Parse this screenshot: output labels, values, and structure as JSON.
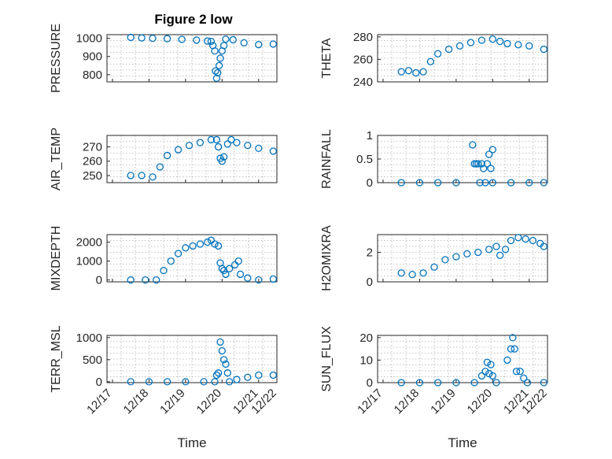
{
  "figure": {
    "title": "Figure 2 low"
  },
  "colors": {
    "marker": "#0072BD",
    "axis": "#262626",
    "grid": "#b0b0b0"
  },
  "chart_data": [
    {
      "id": "pressure",
      "type": "scatter",
      "ylabel": "PRESSURE",
      "xlabel": "",
      "ylim": [
        760,
        1020
      ],
      "yticks": [
        800,
        900,
        1000
      ],
      "grid": true,
      "xlim": [
        0.35,
        5.0
      ],
      "points": [
        [
          1.0,
          1005
        ],
        [
          1.3,
          1002
        ],
        [
          1.6,
          1000
        ],
        [
          2.0,
          998
        ],
        [
          2.4,
          994
        ],
        [
          2.8,
          990
        ],
        [
          3.1,
          985
        ],
        [
          3.2,
          983
        ],
        [
          3.25,
          960
        ],
        [
          3.3,
          930
        ],
        [
          3.32,
          820
        ],
        [
          3.35,
          780
        ],
        [
          3.38,
          810
        ],
        [
          3.42,
          850
        ],
        [
          3.45,
          890
        ],
        [
          3.5,
          930
        ],
        [
          3.55,
          960
        ],
        [
          3.6,
          995
        ],
        [
          3.8,
          992
        ],
        [
          4.1,
          975
        ],
        [
          4.5,
          965
        ],
        [
          4.9,
          968
        ]
      ]
    },
    {
      "id": "theta",
      "type": "scatter",
      "ylabel": "THETA",
      "xlabel": "",
      "ylim": [
        240,
        282
      ],
      "yticks": [
        240,
        260,
        280
      ],
      "grid": true,
      "xlim": [
        0.35,
        5.0
      ],
      "points": [
        [
          1.0,
          249
        ],
        [
          1.2,
          250
        ],
        [
          1.4,
          248
        ],
        [
          1.6,
          249
        ],
        [
          1.8,
          258
        ],
        [
          2.0,
          265
        ],
        [
          2.3,
          269
        ],
        [
          2.6,
          272
        ],
        [
          2.9,
          275
        ],
        [
          3.2,
          277
        ],
        [
          3.5,
          278
        ],
        [
          3.7,
          276
        ],
        [
          3.9,
          274
        ],
        [
          4.2,
          273
        ],
        [
          4.5,
          272
        ],
        [
          4.9,
          269
        ]
      ]
    },
    {
      "id": "airtemp",
      "type": "scatter",
      "ylabel": "AIR_TEMP",
      "xlabel": "",
      "ylim": [
        245,
        278
      ],
      "yticks": [
        250,
        260,
        270
      ],
      "grid": true,
      "xlim": [
        0.35,
        5.0
      ],
      "points": [
        [
          1.0,
          250
        ],
        [
          1.3,
          250
        ],
        [
          1.6,
          249
        ],
        [
          1.8,
          256
        ],
        [
          2.0,
          264
        ],
        [
          2.3,
          268
        ],
        [
          2.6,
          271
        ],
        [
          2.9,
          273
        ],
        [
          3.2,
          275
        ],
        [
          3.35,
          275
        ],
        [
          3.4,
          270
        ],
        [
          3.45,
          262
        ],
        [
          3.5,
          260
        ],
        [
          3.55,
          263
        ],
        [
          3.65,
          272
        ],
        [
          3.75,
          275
        ],
        [
          3.9,
          273
        ],
        [
          4.2,
          271
        ],
        [
          4.5,
          269
        ],
        [
          4.9,
          267
        ]
      ]
    },
    {
      "id": "rainfall",
      "type": "scatter",
      "ylabel": "RAINFALL",
      "xlabel": "",
      "ylim": [
        0,
        1
      ],
      "yticks": [
        0,
        0.5,
        1
      ],
      "grid": true,
      "xlim": [
        0.35,
        5.0
      ],
      "points": [
        [
          1.0,
          0
        ],
        [
          1.5,
          0
        ],
        [
          2.0,
          0
        ],
        [
          2.5,
          0
        ],
        [
          2.95,
          0.8
        ],
        [
          3.0,
          0.4
        ],
        [
          3.05,
          0.4
        ],
        [
          3.1,
          0.4
        ],
        [
          3.15,
          0
        ],
        [
          3.2,
          0.4
        ],
        [
          3.25,
          0.3
        ],
        [
          3.3,
          0
        ],
        [
          3.35,
          0.4
        ],
        [
          3.4,
          0.6
        ],
        [
          3.45,
          0.3
        ],
        [
          3.5,
          0.7
        ],
        [
          3.5,
          0
        ],
        [
          4.0,
          0
        ],
        [
          4.5,
          0
        ],
        [
          4.9,
          0
        ]
      ]
    },
    {
      "id": "mixdepth",
      "type": "scatter",
      "ylabel": "MIXDEPTH",
      "xlabel": "",
      "ylim": [
        -100,
        2400
      ],
      "yticks": [
        0,
        1000,
        2000
      ],
      "grid": true,
      "xlim": [
        0.35,
        5.0
      ],
      "points": [
        [
          1.0,
          0
        ],
        [
          1.4,
          0
        ],
        [
          1.7,
          0
        ],
        [
          1.9,
          500
        ],
        [
          2.1,
          1000
        ],
        [
          2.3,
          1400
        ],
        [
          2.5,
          1700
        ],
        [
          2.7,
          1800
        ],
        [
          2.9,
          1900
        ],
        [
          3.1,
          2000
        ],
        [
          3.2,
          2100
        ],
        [
          3.3,
          1900
        ],
        [
          3.4,
          1800
        ],
        [
          3.45,
          900
        ],
        [
          3.5,
          600
        ],
        [
          3.55,
          500
        ],
        [
          3.6,
          300
        ],
        [
          3.7,
          600
        ],
        [
          3.85,
          800
        ],
        [
          3.95,
          1000
        ],
        [
          4.0,
          300
        ],
        [
          4.2,
          100
        ],
        [
          4.5,
          0
        ],
        [
          4.9,
          50
        ]
      ]
    },
    {
      "id": "h2omixra",
      "type": "scatter",
      "ylabel": "H2OMIXRA",
      "xlabel": "",
      "ylim": [
        0,
        3.2
      ],
      "yticks": [
        0,
        2
      ],
      "grid": true,
      "xlim": [
        0.35,
        5.0
      ],
      "points": [
        [
          1.0,
          0.6
        ],
        [
          1.3,
          0.5
        ],
        [
          1.6,
          0.6
        ],
        [
          1.9,
          1.0
        ],
        [
          2.2,
          1.5
        ],
        [
          2.5,
          1.7
        ],
        [
          2.8,
          1.9
        ],
        [
          3.1,
          2.0
        ],
        [
          3.4,
          2.2
        ],
        [
          3.6,
          2.4
        ],
        [
          3.7,
          1.8
        ],
        [
          3.85,
          2.2
        ],
        [
          4.0,
          2.8
        ],
        [
          4.2,
          3.0
        ],
        [
          4.4,
          2.9
        ],
        [
          4.6,
          2.8
        ],
        [
          4.8,
          2.6
        ],
        [
          4.9,
          2.4
        ]
      ]
    },
    {
      "id": "terrmsl",
      "type": "scatter",
      "ylabel": "TERR_MSL",
      "xlabel": "Time",
      "ylim": [
        -20,
        1050
      ],
      "yticks": [
        0,
        500,
        1000
      ],
      "grid": true,
      "xlim": [
        0.35,
        5.0
      ],
      "xticks": [
        "12/17",
        "12/18",
        "12/19",
        "12/20",
        "12/21",
        "12/22"
      ],
      "points": [
        [
          1.0,
          0
        ],
        [
          1.5,
          0
        ],
        [
          2.0,
          0
        ],
        [
          2.5,
          0
        ],
        [
          3.0,
          0
        ],
        [
          3.3,
          0
        ],
        [
          3.35,
          150
        ],
        [
          3.4,
          200
        ],
        [
          3.45,
          900
        ],
        [
          3.5,
          700
        ],
        [
          3.55,
          500
        ],
        [
          3.6,
          400
        ],
        [
          3.65,
          200
        ],
        [
          3.7,
          0
        ],
        [
          3.9,
          50
        ],
        [
          4.2,
          100
        ],
        [
          4.5,
          150
        ],
        [
          4.9,
          150
        ]
      ]
    },
    {
      "id": "sunflux",
      "type": "scatter",
      "ylabel": "SUN_FLUX",
      "xlabel": "Time",
      "ylim": [
        0,
        21
      ],
      "yticks": [
        0,
        10,
        20
      ],
      "grid": true,
      "xlim": [
        0.35,
        5.0
      ],
      "xticks": [
        "12/17",
        "12/18",
        "12/19",
        "12/20",
        "12/21",
        "12/22"
      ],
      "points": [
        [
          1.0,
          0
        ],
        [
          1.5,
          0
        ],
        [
          2.0,
          0
        ],
        [
          2.5,
          0
        ],
        [
          3.0,
          0
        ],
        [
          3.2,
          3
        ],
        [
          3.3,
          5
        ],
        [
          3.35,
          9
        ],
        [
          3.4,
          4
        ],
        [
          3.45,
          8
        ],
        [
          3.5,
          3
        ],
        [
          3.6,
          0
        ],
        [
          3.9,
          10
        ],
        [
          4.0,
          15
        ],
        [
          4.05,
          20
        ],
        [
          4.1,
          15
        ],
        [
          4.15,
          5
        ],
        [
          4.25,
          5
        ],
        [
          4.35,
          2
        ],
        [
          4.45,
          0
        ],
        [
          4.9,
          0
        ]
      ]
    }
  ]
}
